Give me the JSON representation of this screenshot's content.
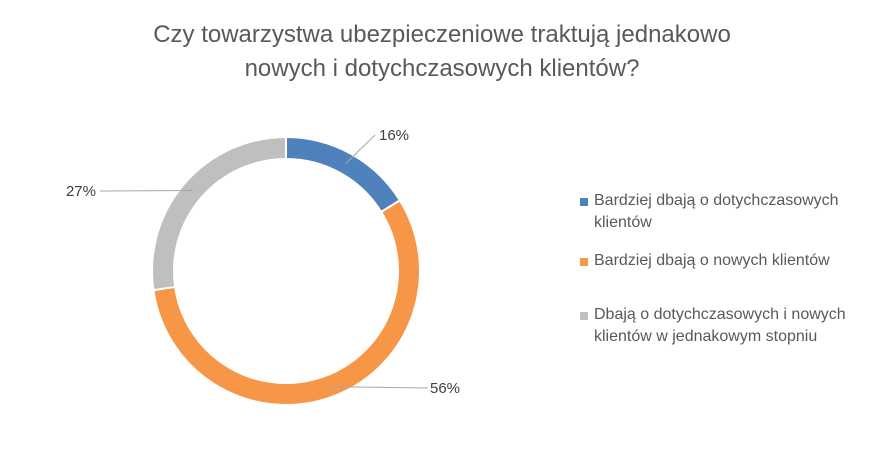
{
  "chart_data": {
    "type": "pie",
    "title_lines": [
      "Czy towarzystwa ubezpieczeniowe  traktują jednakowo",
      "nowych i dotychczasowych klientów?"
    ],
    "categories": [
      "Bardziej dbają o dotychczasowych klientów",
      "Bardziej dbają o nowych klientów",
      "Dbają o dotychczasowych i nowych klientów w jednakowym stopniu"
    ],
    "values": [
      16,
      56,
      27
    ],
    "data_labels": [
      "16%",
      "56%",
      "27%"
    ],
    "colors": [
      "#4F81BD",
      "#F79646",
      "#BFBFBF"
    ],
    "legend_position": "right"
  }
}
